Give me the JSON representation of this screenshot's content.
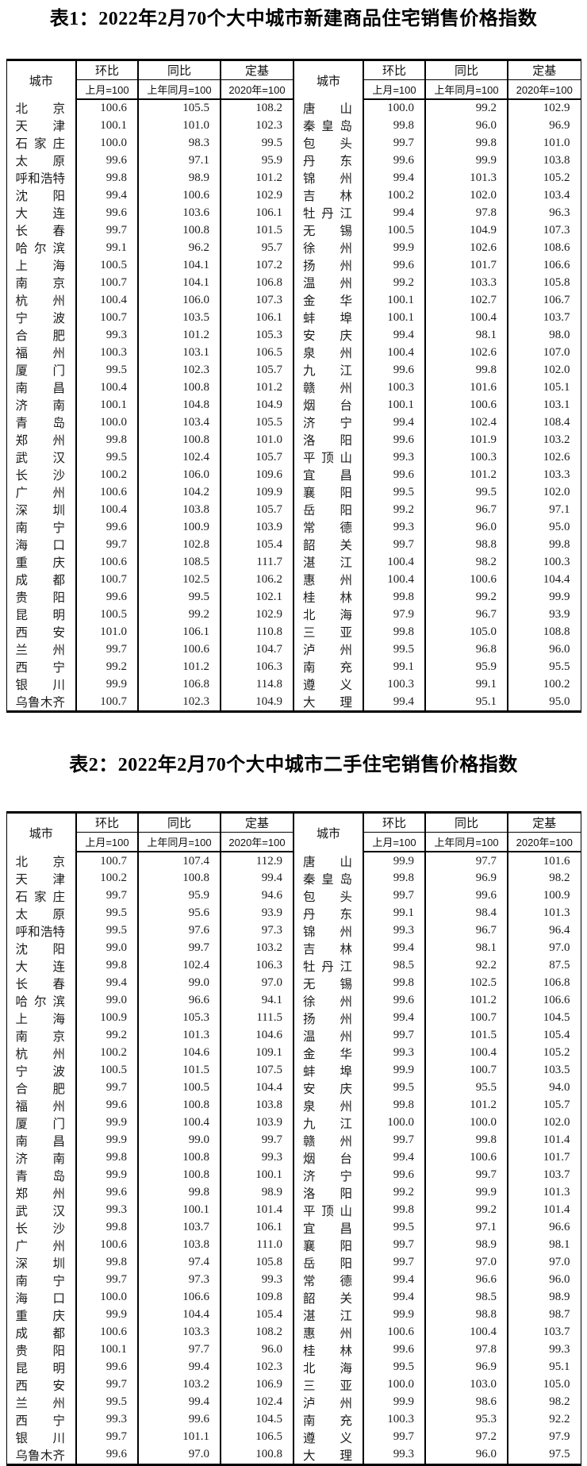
{
  "tables": [
    {
      "title": "表1：2022年2月70个大中城市新建商品住宅销售价格指数",
      "header": {
        "city": "城市",
        "mom": "环比",
        "yoy": "同比",
        "fixed": "定基",
        "mom_sub": "上月=100",
        "yoy_sub": "上年同月=100",
        "fixed_sub": "2020年=100"
      },
      "left_rows": [
        [
          "北京",
          "100.6",
          "105.5",
          "108.2"
        ],
        [
          "天津",
          "100.1",
          "101.0",
          "102.3"
        ],
        [
          "石家庄",
          "100.0",
          "98.3",
          "99.5"
        ],
        [
          "太原",
          "99.6",
          "97.1",
          "95.9"
        ],
        [
          "呼和浩特",
          "99.8",
          "98.9",
          "101.2"
        ],
        [
          "沈阳",
          "99.4",
          "100.6",
          "102.9"
        ],
        [
          "大连",
          "99.6",
          "103.6",
          "106.1"
        ],
        [
          "长春",
          "99.7",
          "100.8",
          "101.5"
        ],
        [
          "哈尔滨",
          "99.1",
          "96.2",
          "95.7"
        ],
        [
          "上海",
          "100.5",
          "104.1",
          "107.2"
        ],
        [
          "南京",
          "100.7",
          "104.1",
          "106.8"
        ],
        [
          "杭州",
          "100.4",
          "106.0",
          "107.3"
        ],
        [
          "宁波",
          "100.7",
          "103.5",
          "106.1"
        ],
        [
          "合肥",
          "99.3",
          "101.2",
          "105.3"
        ],
        [
          "福州",
          "100.3",
          "103.1",
          "106.5"
        ],
        [
          "厦门",
          "99.5",
          "102.3",
          "105.7"
        ],
        [
          "南昌",
          "100.4",
          "100.8",
          "101.2"
        ],
        [
          "济南",
          "100.1",
          "104.8",
          "104.9"
        ],
        [
          "青岛",
          "100.0",
          "103.4",
          "105.5"
        ],
        [
          "郑州",
          "99.8",
          "100.8",
          "101.0"
        ],
        [
          "武汉",
          "99.5",
          "102.4",
          "105.7"
        ],
        [
          "长沙",
          "100.2",
          "106.0",
          "109.6"
        ],
        [
          "广州",
          "100.6",
          "104.2",
          "109.9"
        ],
        [
          "深圳",
          "100.4",
          "103.8",
          "105.7"
        ],
        [
          "南宁",
          "99.6",
          "100.9",
          "103.9"
        ],
        [
          "海口",
          "99.7",
          "102.8",
          "105.4"
        ],
        [
          "重庆",
          "100.6",
          "108.5",
          "111.7"
        ],
        [
          "成都",
          "100.7",
          "102.5",
          "106.2"
        ],
        [
          "贵阳",
          "99.6",
          "99.5",
          "102.1"
        ],
        [
          "昆明",
          "100.5",
          "99.2",
          "102.9"
        ],
        [
          "西安",
          "101.0",
          "106.1",
          "110.8"
        ],
        [
          "兰州",
          "99.7",
          "100.6",
          "104.7"
        ],
        [
          "西宁",
          "99.2",
          "101.2",
          "106.3"
        ],
        [
          "银川",
          "99.9",
          "106.8",
          "114.8"
        ],
        [
          "乌鲁木齐",
          "100.7",
          "102.3",
          "104.9"
        ]
      ],
      "right_rows": [
        [
          "唐山",
          "100.0",
          "99.2",
          "102.9"
        ],
        [
          "秦皇岛",
          "99.8",
          "96.0",
          "96.9"
        ],
        [
          "包头",
          "99.7",
          "99.8",
          "101.0"
        ],
        [
          "丹东",
          "99.6",
          "99.9",
          "103.8"
        ],
        [
          "锦州",
          "99.4",
          "101.3",
          "105.2"
        ],
        [
          "吉林",
          "100.2",
          "102.0",
          "103.4"
        ],
        [
          "牡丹江",
          "99.4",
          "97.8",
          "96.3"
        ],
        [
          "无锡",
          "100.5",
          "104.9",
          "107.3"
        ],
        [
          "徐州",
          "99.9",
          "102.6",
          "108.6"
        ],
        [
          "扬州",
          "99.6",
          "101.7",
          "106.6"
        ],
        [
          "温州",
          "99.2",
          "103.3",
          "105.8"
        ],
        [
          "金华",
          "100.1",
          "102.7",
          "106.7"
        ],
        [
          "蚌埠",
          "100.1",
          "100.4",
          "103.7"
        ],
        [
          "安庆",
          "99.4",
          "98.1",
          "98.0"
        ],
        [
          "泉州",
          "100.4",
          "102.6",
          "107.0"
        ],
        [
          "九江",
          "99.6",
          "99.8",
          "102.0"
        ],
        [
          "赣州",
          "100.3",
          "101.6",
          "105.1"
        ],
        [
          "烟台",
          "100.1",
          "100.6",
          "103.1"
        ],
        [
          "济宁",
          "99.4",
          "102.4",
          "108.4"
        ],
        [
          "洛阳",
          "99.6",
          "101.9",
          "103.2"
        ],
        [
          "平顶山",
          "99.3",
          "100.3",
          "102.6"
        ],
        [
          "宜昌",
          "99.6",
          "101.2",
          "103.3"
        ],
        [
          "襄阳",
          "99.5",
          "99.5",
          "102.0"
        ],
        [
          "岳阳",
          "99.2",
          "96.7",
          "97.1"
        ],
        [
          "常德",
          "99.3",
          "96.0",
          "95.0"
        ],
        [
          "韶关",
          "99.7",
          "98.8",
          "99.8"
        ],
        [
          "湛江",
          "100.4",
          "98.2",
          "100.3"
        ],
        [
          "惠州",
          "100.4",
          "100.6",
          "104.4"
        ],
        [
          "桂林",
          "99.8",
          "99.2",
          "99.9"
        ],
        [
          "北海",
          "97.9",
          "96.7",
          "93.9"
        ],
        [
          "三亚",
          "99.8",
          "105.0",
          "108.8"
        ],
        [
          "泸州",
          "99.5",
          "96.8",
          "96.0"
        ],
        [
          "南充",
          "99.1",
          "95.9",
          "95.5"
        ],
        [
          "遵义",
          "100.3",
          "99.1",
          "100.2"
        ],
        [
          "大理",
          "99.4",
          "95.1",
          "95.0"
        ]
      ]
    },
    {
      "title": "表2：2022年2月70个大中城市二手住宅销售价格指数",
      "header": {
        "city": "城市",
        "mom": "环比",
        "yoy": "同比",
        "fixed": "定基",
        "mom_sub": "上月=100",
        "yoy_sub": "上年同月=100",
        "fixed_sub": "2020年=100"
      },
      "left_rows": [
        [
          "北京",
          "100.7",
          "107.4",
          "112.9"
        ],
        [
          "天津",
          "100.2",
          "100.8",
          "99.4"
        ],
        [
          "石家庄",
          "99.7",
          "95.9",
          "94.6"
        ],
        [
          "太原",
          "99.5",
          "95.6",
          "93.9"
        ],
        [
          "呼和浩特",
          "99.5",
          "97.6",
          "97.3"
        ],
        [
          "沈阳",
          "99.0",
          "99.7",
          "103.2"
        ],
        [
          "大连",
          "99.8",
          "102.4",
          "106.3"
        ],
        [
          "长春",
          "99.4",
          "99.0",
          "97.0"
        ],
        [
          "哈尔滨",
          "99.0",
          "96.6",
          "94.1"
        ],
        [
          "上海",
          "100.9",
          "105.3",
          "111.5"
        ],
        [
          "南京",
          "99.2",
          "101.3",
          "104.6"
        ],
        [
          "杭州",
          "100.2",
          "104.6",
          "109.1"
        ],
        [
          "宁波",
          "100.5",
          "101.5",
          "107.5"
        ],
        [
          "合肥",
          "99.7",
          "100.5",
          "104.4"
        ],
        [
          "福州",
          "99.6",
          "100.8",
          "103.8"
        ],
        [
          "厦门",
          "99.9",
          "100.4",
          "103.9"
        ],
        [
          "南昌",
          "99.9",
          "99.0",
          "99.7"
        ],
        [
          "济南",
          "99.8",
          "100.8",
          "99.3"
        ],
        [
          "青岛",
          "99.9",
          "100.8",
          "100.1"
        ],
        [
          "郑州",
          "99.6",
          "99.8",
          "98.9"
        ],
        [
          "武汉",
          "99.3",
          "100.1",
          "101.4"
        ],
        [
          "长沙",
          "99.8",
          "103.7",
          "106.1"
        ],
        [
          "广州",
          "100.6",
          "103.8",
          "111.0"
        ],
        [
          "深圳",
          "99.8",
          "97.4",
          "105.8"
        ],
        [
          "南宁",
          "99.7",
          "97.3",
          "99.3"
        ],
        [
          "海口",
          "100.0",
          "106.6",
          "109.8"
        ],
        [
          "重庆",
          "99.9",
          "104.4",
          "105.4"
        ],
        [
          "成都",
          "100.6",
          "103.3",
          "108.2"
        ],
        [
          "贵阳",
          "100.1",
          "97.7",
          "96.0"
        ],
        [
          "昆明",
          "99.6",
          "99.4",
          "102.3"
        ],
        [
          "西安",
          "99.7",
          "103.2",
          "106.9"
        ],
        [
          "兰州",
          "99.5",
          "99.4",
          "102.4"
        ],
        [
          "西宁",
          "99.3",
          "99.6",
          "104.5"
        ],
        [
          "银川",
          "99.7",
          "101.1",
          "106.5"
        ],
        [
          "乌鲁木齐",
          "99.6",
          "97.0",
          "100.8"
        ]
      ],
      "right_rows": [
        [
          "唐山",
          "99.9",
          "97.7",
          "101.6"
        ],
        [
          "秦皇岛",
          "99.8",
          "96.9",
          "98.2"
        ],
        [
          "包头",
          "99.7",
          "99.6",
          "100.9"
        ],
        [
          "丹东",
          "99.1",
          "98.4",
          "101.3"
        ],
        [
          "锦州",
          "99.3",
          "96.7",
          "96.4"
        ],
        [
          "吉林",
          "99.4",
          "98.1",
          "97.0"
        ],
        [
          "牡丹江",
          "98.5",
          "92.2",
          "87.5"
        ],
        [
          "无锡",
          "99.8",
          "102.5",
          "106.8"
        ],
        [
          "徐州",
          "99.6",
          "101.2",
          "106.6"
        ],
        [
          "扬州",
          "99.4",
          "100.7",
          "104.5"
        ],
        [
          "温州",
          "99.7",
          "101.5",
          "105.4"
        ],
        [
          "金华",
          "99.3",
          "100.4",
          "105.2"
        ],
        [
          "蚌埠",
          "99.9",
          "100.7",
          "103.5"
        ],
        [
          "安庆",
          "99.5",
          "95.5",
          "94.0"
        ],
        [
          "泉州",
          "99.8",
          "101.2",
          "105.7"
        ],
        [
          "九江",
          "100.0",
          "100.0",
          "102.0"
        ],
        [
          "赣州",
          "99.7",
          "99.8",
          "101.4"
        ],
        [
          "烟台",
          "99.4",
          "100.6",
          "101.7"
        ],
        [
          "济宁",
          "99.6",
          "99.7",
          "103.7"
        ],
        [
          "洛阳",
          "99.2",
          "99.9",
          "101.3"
        ],
        [
          "平顶山",
          "99.8",
          "99.2",
          "101.4"
        ],
        [
          "宜昌",
          "99.5",
          "97.1",
          "96.6"
        ],
        [
          "襄阳",
          "99.7",
          "98.9",
          "98.1"
        ],
        [
          "岳阳",
          "99.7",
          "97.0",
          "97.0"
        ],
        [
          "常德",
          "99.4",
          "96.6",
          "96.0"
        ],
        [
          "韶关",
          "99.4",
          "98.5",
          "98.9"
        ],
        [
          "湛江",
          "99.9",
          "98.8",
          "98.7"
        ],
        [
          "惠州",
          "100.6",
          "100.4",
          "103.7"
        ],
        [
          "桂林",
          "99.6",
          "97.8",
          "99.3"
        ],
        [
          "北海",
          "99.5",
          "96.9",
          "95.1"
        ],
        [
          "三亚",
          "100.0",
          "103.0",
          "105.0"
        ],
        [
          "泸州",
          "99.9",
          "98.6",
          "98.2"
        ],
        [
          "南充",
          "100.3",
          "95.3",
          "92.2"
        ],
        [
          "遵义",
          "99.7",
          "97.2",
          "97.9"
        ],
        [
          "大理",
          "99.3",
          "96.0",
          "97.5"
        ]
      ]
    }
  ]
}
